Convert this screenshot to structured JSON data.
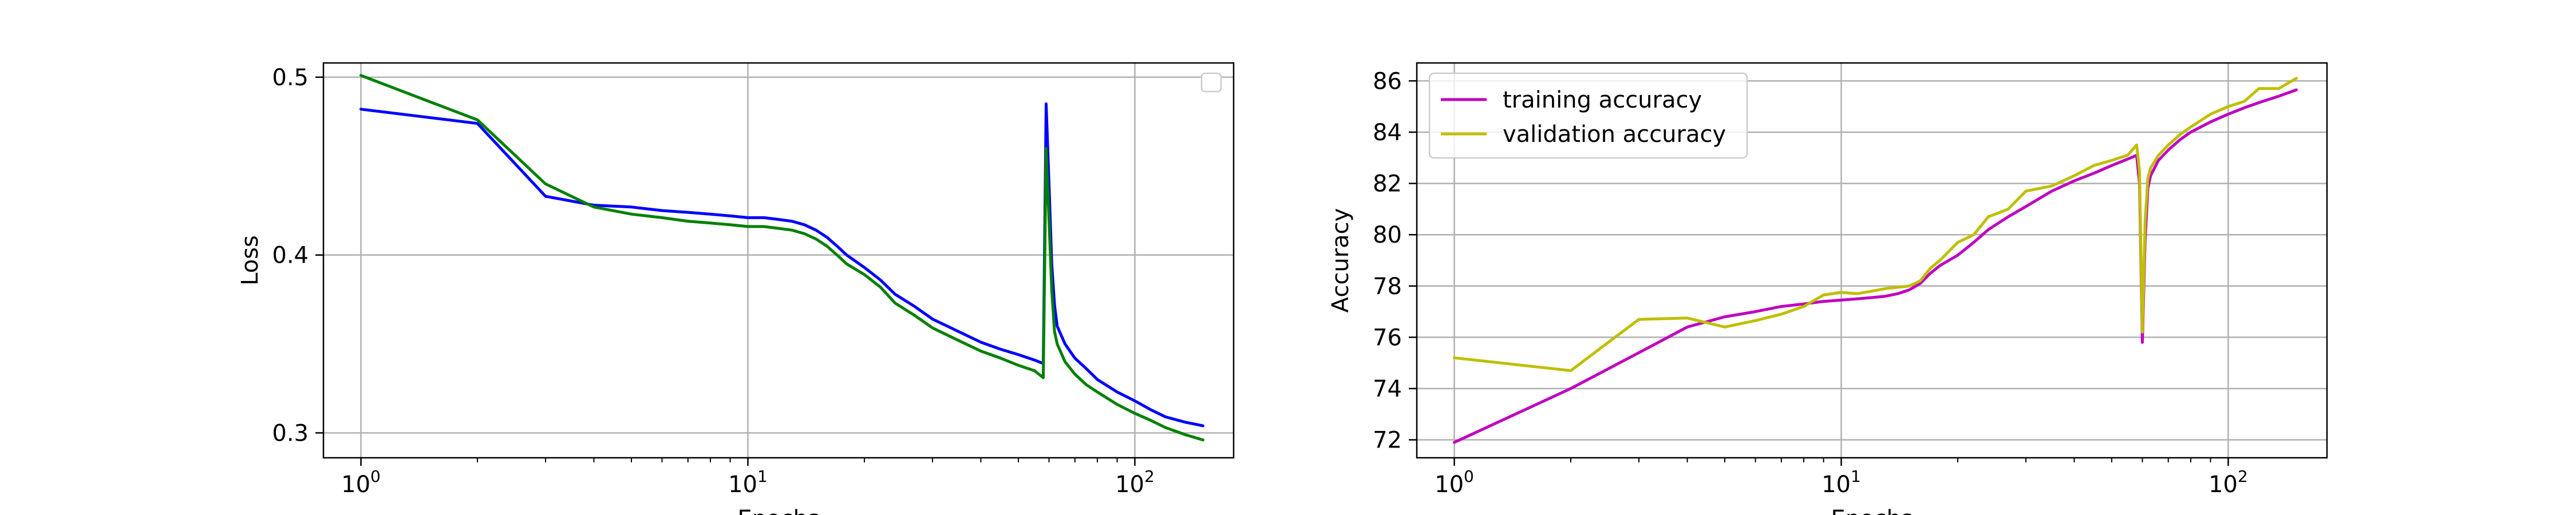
{
  "chart_data": [
    {
      "type": "line",
      "title": "",
      "xlabel": "Epochs",
      "ylabel": "Loss",
      "x_scale": "log",
      "xlim": [
        0.8,
        180
      ],
      "ylim": [
        0.286,
        0.508
      ],
      "grid": true,
      "legend": {
        "placement": "upper right",
        "entries": []
      },
      "x_ticks": [
        {
          "value": 1,
          "base": "10",
          "exp": "0"
        },
        {
          "value": 10,
          "base": "10",
          "exp": "1"
        },
        {
          "value": 100,
          "base": "10",
          "exp": "2"
        }
      ],
      "y_ticks": [
        {
          "value": 0.3,
          "label": "0.3"
        },
        {
          "value": 0.4,
          "label": "0.4"
        },
        {
          "value": 0.5,
          "label": "0.5"
        }
      ],
      "series": [
        {
          "color": "#0000ff",
          "points": [
            [
              1,
              0.482
            ],
            [
              2,
              0.474
            ],
            [
              3,
              0.433
            ],
            [
              4,
              0.428
            ],
            [
              5,
              0.427
            ],
            [
              6,
              0.425
            ],
            [
              7,
              0.424
            ],
            [
              8,
              0.423
            ],
            [
              9,
              0.422
            ],
            [
              10,
              0.421
            ],
            [
              11,
              0.421
            ],
            [
              12,
              0.42
            ],
            [
              13,
              0.419
            ],
            [
              14,
              0.417
            ],
            [
              15,
              0.414
            ],
            [
              16,
              0.41
            ],
            [
              17,
              0.405
            ],
            [
              18,
              0.4
            ],
            [
              20,
              0.393
            ],
            [
              22,
              0.386
            ],
            [
              24,
              0.378
            ],
            [
              27,
              0.371
            ],
            [
              30,
              0.364
            ],
            [
              35,
              0.357
            ],
            [
              40,
              0.351
            ],
            [
              45,
              0.347
            ],
            [
              50,
              0.344
            ],
            [
              55,
              0.341
            ],
            [
              58,
              0.339
            ],
            [
              59,
              0.485
            ],
            [
              60,
              0.44
            ],
            [
              61,
              0.395
            ],
            [
              62,
              0.372
            ],
            [
              63,
              0.36
            ],
            [
              66,
              0.35
            ],
            [
              70,
              0.342
            ],
            [
              75,
              0.336
            ],
            [
              80,
              0.33
            ],
            [
              90,
              0.323
            ],
            [
              100,
              0.318
            ],
            [
              110,
              0.313
            ],
            [
              120,
              0.309
            ],
            [
              135,
              0.306
            ],
            [
              150,
              0.304
            ]
          ]
        },
        {
          "color": "#008000",
          "points": [
            [
              1,
              0.501
            ],
            [
              2,
              0.476
            ],
            [
              3,
              0.44
            ],
            [
              4,
              0.427
            ],
            [
              5,
              0.423
            ],
            [
              6,
              0.421
            ],
            [
              7,
              0.419
            ],
            [
              8,
              0.418
            ],
            [
              9,
              0.417
            ],
            [
              10,
              0.416
            ],
            [
              11,
              0.416
            ],
            [
              12,
              0.415
            ],
            [
              13,
              0.414
            ],
            [
              14,
              0.412
            ],
            [
              15,
              0.409
            ],
            [
              16,
              0.405
            ],
            [
              17,
              0.4
            ],
            [
              18,
              0.395
            ],
            [
              20,
              0.389
            ],
            [
              22,
              0.382
            ],
            [
              24,
              0.373
            ],
            [
              27,
              0.366
            ],
            [
              30,
              0.359
            ],
            [
              35,
              0.352
            ],
            [
              40,
              0.346
            ],
            [
              45,
              0.342
            ],
            [
              50,
              0.338
            ],
            [
              55,
              0.335
            ],
            [
              58,
              0.331
            ],
            [
              59,
              0.46
            ],
            [
              60,
              0.42
            ],
            [
              61,
              0.38
            ],
            [
              62,
              0.357
            ],
            [
              63,
              0.35
            ],
            [
              66,
              0.34
            ],
            [
              70,
              0.333
            ],
            [
              75,
              0.327
            ],
            [
              80,
              0.323
            ],
            [
              90,
              0.316
            ],
            [
              100,
              0.311
            ],
            [
              110,
              0.307
            ],
            [
              120,
              0.303
            ],
            [
              135,
              0.299
            ],
            [
              150,
              0.296
            ]
          ]
        }
      ]
    },
    {
      "type": "line",
      "title": "",
      "xlabel": "Epochs",
      "ylabel": "Accuracy",
      "x_scale": "log",
      "xlim": [
        0.8,
        180
      ],
      "ylim": [
        71.3,
        86.7
      ],
      "grid": true,
      "legend": {
        "placement": "upper left"
      },
      "x_ticks": [
        {
          "value": 1,
          "base": "10",
          "exp": "0"
        },
        {
          "value": 10,
          "base": "10",
          "exp": "1"
        },
        {
          "value": 100,
          "base": "10",
          "exp": "2"
        }
      ],
      "y_ticks": [
        {
          "value": 72,
          "label": "72"
        },
        {
          "value": 74,
          "label": "74"
        },
        {
          "value": 76,
          "label": "76"
        },
        {
          "value": 78,
          "label": "78"
        },
        {
          "value": 80,
          "label": "80"
        },
        {
          "value": 82,
          "label": "82"
        },
        {
          "value": 84,
          "label": "84"
        },
        {
          "value": 86,
          "label": "86"
        }
      ],
      "series": [
        {
          "name": "training accuracy",
          "color": "#bf00bf",
          "points": [
            [
              1,
              71.9
            ],
            [
              2,
              74.0
            ],
            [
              3,
              75.4
            ],
            [
              4,
              76.4
            ],
            [
              5,
              76.8
            ],
            [
              6,
              77.0
            ],
            [
              7,
              77.2
            ],
            [
              8,
              77.3
            ],
            [
              9,
              77.4
            ],
            [
              10,
              77.45
            ],
            [
              11,
              77.5
            ],
            [
              12,
              77.55
            ],
            [
              13,
              77.6
            ],
            [
              14,
              77.7
            ],
            [
              15,
              77.85
            ],
            [
              16,
              78.1
            ],
            [
              17,
              78.5
            ],
            [
              18,
              78.8
            ],
            [
              20,
              79.2
            ],
            [
              22,
              79.7
            ],
            [
              24,
              80.2
            ],
            [
              27,
              80.7
            ],
            [
              30,
              81.1
            ],
            [
              35,
              81.7
            ],
            [
              40,
              82.1
            ],
            [
              45,
              82.4
            ],
            [
              50,
              82.7
            ],
            [
              55,
              82.95
            ],
            [
              58,
              83.1
            ],
            [
              59,
              82.0
            ],
            [
              60,
              75.8
            ],
            [
              61,
              79.8
            ],
            [
              62,
              81.8
            ],
            [
              63,
              82.3
            ],
            [
              66,
              82.9
            ],
            [
              70,
              83.3
            ],
            [
              75,
              83.7
            ],
            [
              80,
              84.0
            ],
            [
              90,
              84.4
            ],
            [
              100,
              84.7
            ],
            [
              110,
              84.95
            ],
            [
              120,
              85.15
            ],
            [
              135,
              85.4
            ],
            [
              150,
              85.65
            ]
          ]
        },
        {
          "name": "validation accuracy",
          "color": "#bfbf00",
          "points": [
            [
              1,
              75.2
            ],
            [
              2,
              74.7
            ],
            [
              3,
              76.7
            ],
            [
              4,
              76.75
            ],
            [
              5,
              76.4
            ],
            [
              6,
              76.65
            ],
            [
              7,
              76.9
            ],
            [
              8,
              77.2
            ],
            [
              9,
              77.65
            ],
            [
              10,
              77.75
            ],
            [
              11,
              77.7
            ],
            [
              12,
              77.8
            ],
            [
              13,
              77.9
            ],
            [
              14,
              77.95
            ],
            [
              15,
              78.0
            ],
            [
              16,
              78.2
            ],
            [
              17,
              78.7
            ],
            [
              18,
              79.0
            ],
            [
              20,
              79.7
            ],
            [
              22,
              80.0
            ],
            [
              24,
              80.7
            ],
            [
              27,
              81.0
            ],
            [
              30,
              81.7
            ],
            [
              35,
              81.9
            ],
            [
              40,
              82.3
            ],
            [
              45,
              82.7
            ],
            [
              50,
              82.9
            ],
            [
              55,
              83.1
            ],
            [
              58,
              83.5
            ],
            [
              59,
              82.5
            ],
            [
              60,
              76.2
            ],
            [
              61,
              80.5
            ],
            [
              62,
              82.2
            ],
            [
              63,
              82.6
            ],
            [
              66,
              83.1
            ],
            [
              70,
              83.5
            ],
            [
              75,
              83.9
            ],
            [
              80,
              84.2
            ],
            [
              90,
              84.7
            ],
            [
              100,
              85.0
            ],
            [
              110,
              85.2
            ],
            [
              120,
              85.7
            ],
            [
              135,
              85.7
            ],
            [
              150,
              86.1
            ]
          ]
        }
      ]
    }
  ]
}
